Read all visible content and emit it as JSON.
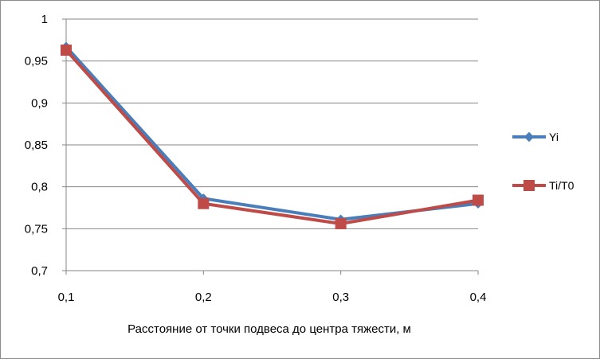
{
  "chart_data": {
    "type": "line",
    "title": "",
    "xlabel": "Расстояние от точки подвеса до центра тяжести, м",
    "ylabel": "",
    "x": [
      0.1,
      0.2,
      0.3,
      0.4
    ],
    "x_tick_labels": [
      "0,1",
      "0,2",
      "0,3",
      "0,4"
    ],
    "y_ticks": [
      0.7,
      0.75,
      0.8,
      0.85,
      0.9,
      0.95,
      1
    ],
    "y_tick_labels": [
      "0,7",
      "0,75",
      "0,8",
      "0,85",
      "0,9",
      "0,95",
      "1"
    ],
    "ylim": [
      0.7,
      1
    ],
    "grid": "horizontal",
    "legend_position": "right",
    "series": [
      {
        "name": "Yi",
        "marker": "diamond",
        "color": "#4a7ebb",
        "values": [
          0.967,
          0.786,
          0.761,
          0.78
        ]
      },
      {
        "name": "Ti/T0",
        "marker": "square",
        "color": "#be4b48",
        "values": [
          0.963,
          0.78,
          0.756,
          0.784
        ]
      }
    ]
  }
}
